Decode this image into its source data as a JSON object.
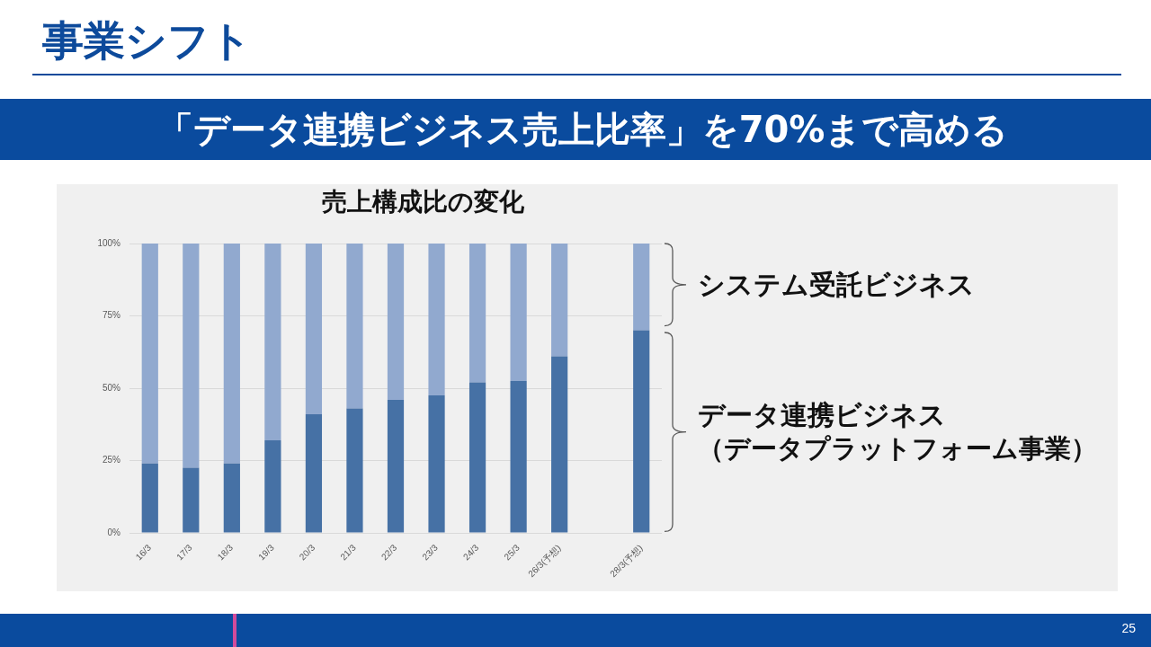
{
  "chart_data": {
    "type": "bar",
    "title": "売上構成比の変化",
    "subtitle": "「データ連携ビジネス売上比率」を70%まで高める",
    "annotations": [
      "事業シフト",
      "（データプラットフォーム事業）",
      "25"
    ],
    "categories": [
      "16/3",
      "17/3",
      "18/3",
      "19/3",
      "20/3",
      "21/3",
      "22/3",
      "23/3",
      "24/3",
      "25/3",
      "26/3(予想)",
      null,
      "28/3(予想)"
    ],
    "series": [
      {
        "name": "データ連携ビジネス",
        "color": "#4671a5",
        "values": [
          24,
          22.5,
          24,
          32,
          41,
          43,
          46,
          47.5,
          52,
          52.5,
          61,
          null,
          70
        ]
      },
      {
        "name": "システム受託ビジネス",
        "color": "#91a9cf",
        "values": [
          76,
          77.5,
          76,
          68,
          59,
          57,
          54,
          52.5,
          48,
          47.5,
          39,
          null,
          30
        ]
      }
    ],
    "stacked": true,
    "ylim": [
      0,
      100
    ],
    "yticks": [
      {
        "value": 0,
        "label": "0%"
      },
      {
        "value": 25,
        "label": "25%"
      },
      {
        "value": 50,
        "label": "50%"
      },
      {
        "value": 75,
        "label": "75%"
      },
      {
        "value": 100,
        "label": "100%"
      }
    ],
    "grid": "y"
  }
}
